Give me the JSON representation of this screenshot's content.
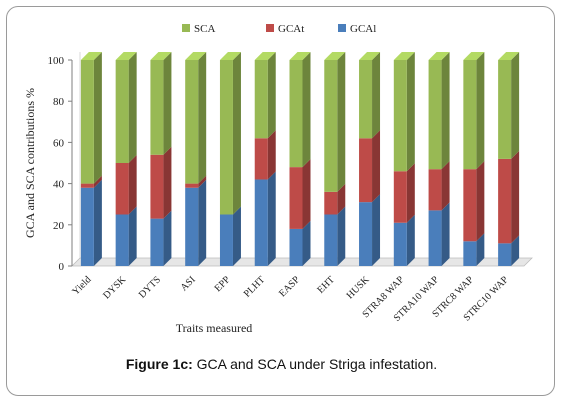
{
  "chart_data": {
    "type": "bar",
    "stacked": true,
    "categories": [
      "Yield",
      "DYSK",
      "DYTS",
      "ASI",
      "EPP",
      "PLHT",
      "EASP",
      "EHT",
      "HUSK",
      "STRA8 WAP",
      "STRA10 WAP",
      "STRC8 WAP",
      "STRC10 WAP"
    ],
    "series": [
      {
        "name": "GCAl",
        "color": "#4a7ebb",
        "values": [
          38,
          25,
          23,
          38,
          25,
          42,
          18,
          25,
          31,
          21,
          27,
          12,
          11
        ]
      },
      {
        "name": "GCAt",
        "color": "#be4b48",
        "values": [
          2,
          25,
          31,
          2,
          0,
          20,
          30,
          11,
          31,
          25,
          20,
          35,
          41
        ]
      },
      {
        "name": "SCA",
        "color": "#98b954",
        "values": [
          60,
          50,
          46,
          60,
          75,
          38,
          52,
          64,
          38,
          54,
          53,
          53,
          48
        ]
      }
    ],
    "legend_order": [
      "SCA",
      "GCAt",
      "GCAl"
    ],
    "title": "",
    "xlabel": "Traits measured",
    "ylabel": "GCA and SCA contributions %",
    "ylim": [
      0,
      100
    ],
    "yticks": [
      0,
      20,
      40,
      60,
      80,
      100
    ],
    "legend_position": "top",
    "grid": false
  },
  "caption": {
    "label": "Figure 1c:",
    "text": " GCA and SCA under Striga infestation."
  }
}
